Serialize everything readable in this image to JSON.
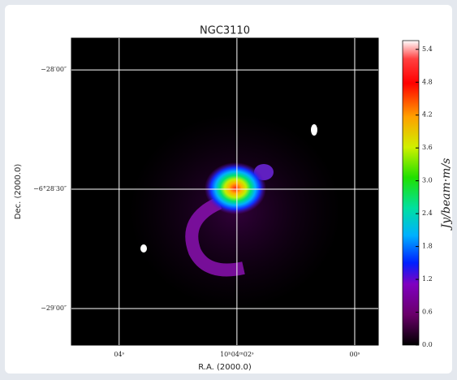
{
  "chart_data": {
    "type": "image",
    "title": "NGC3110",
    "xlabel": "R.A. (2000.0)",
    "ylabel": "Dec. (2000.0)",
    "colorbar_label": "Jy/beam·m/s",
    "xlim": [
      4.81,
      -0.4
    ],
    "xticks": [
      {
        "value": 4,
        "label": "04ˢ"
      },
      {
        "value": 2,
        "label": "10ʰ04ᵐ02ˢ"
      },
      {
        "value": 0,
        "label": "00ˢ"
      }
    ],
    "ylim": [
      -29.153,
      -27.867
    ],
    "yticks": [
      {
        "value": -28,
        "label": "−28′00″"
      },
      {
        "value": -28.5,
        "label": "−6°28′30″"
      },
      {
        "value": -29,
        "label": "−29′00″"
      }
    ],
    "clim": [
      0,
      5.56
    ],
    "cticks": [
      {
        "value": 0,
        "label": "0.0"
      },
      0.6,
      1.2,
      1.8,
      2.4,
      {
        "value": 3,
        "label": "3.0"
      },
      3.6,
      4.2,
      4.8,
      5.4
    ],
    "grid": true
  }
}
